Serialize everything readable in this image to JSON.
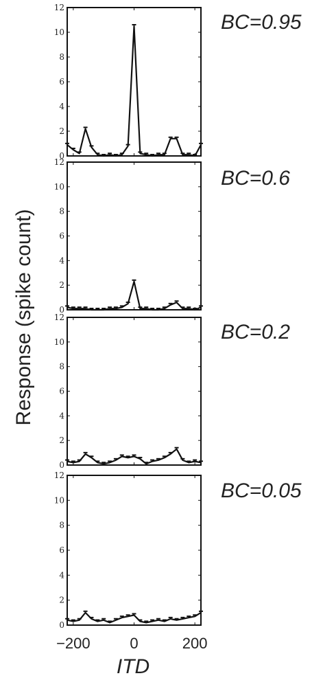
{
  "chart_data": {
    "type": "line",
    "ylabel": "Response (spike count)",
    "xlabel": "ITD",
    "xticks": [
      -200,
      0,
      200
    ],
    "yticks": [
      0,
      2,
      4,
      6,
      8,
      10,
      12
    ],
    "xlim": [
      -220,
      220
    ],
    "ylim": [
      0,
      12
    ],
    "x": [
      -220,
      -200,
      -180,
      -160,
      -140,
      -120,
      -100,
      -80,
      -60,
      -40,
      -20,
      0,
      20,
      40,
      60,
      80,
      100,
      120,
      140,
      160,
      180,
      200,
      220
    ],
    "panels": [
      {
        "label": "BC=0.95",
        "values": [
          0.9,
          0.5,
          0.2,
          2.2,
          0.7,
          0.1,
          0.0,
          0.1,
          0.0,
          0.1,
          0.8,
          10.5,
          0.2,
          0.1,
          0.0,
          0.1,
          0.1,
          1.4,
          1.4,
          0.1,
          0.1,
          0.0,
          0.9
        ]
      },
      {
        "label": "BC=0.6",
        "values": [
          0.2,
          0.1,
          0.1,
          0.1,
          0.0,
          0.0,
          0.0,
          0.1,
          0.1,
          0.2,
          0.5,
          2.3,
          0.1,
          0.1,
          0.0,
          0.0,
          0.1,
          0.4,
          0.6,
          0.1,
          0.1,
          0.0,
          0.2
        ]
      },
      {
        "label": "BC=0.2",
        "values": [
          0.3,
          0.2,
          0.3,
          0.9,
          0.6,
          0.2,
          0.1,
          0.2,
          0.4,
          0.7,
          0.6,
          0.7,
          0.5,
          0.1,
          0.3,
          0.4,
          0.6,
          0.9,
          1.3,
          0.4,
          0.2,
          0.3,
          0.2
        ]
      },
      {
        "label": "BC=0.05",
        "values": [
          0.4,
          0.3,
          0.4,
          1.0,
          0.5,
          0.3,
          0.4,
          0.2,
          0.4,
          0.6,
          0.7,
          0.8,
          0.3,
          0.2,
          0.3,
          0.4,
          0.3,
          0.5,
          0.4,
          0.5,
          0.6,
          0.7,
          1.0
        ]
      }
    ]
  }
}
